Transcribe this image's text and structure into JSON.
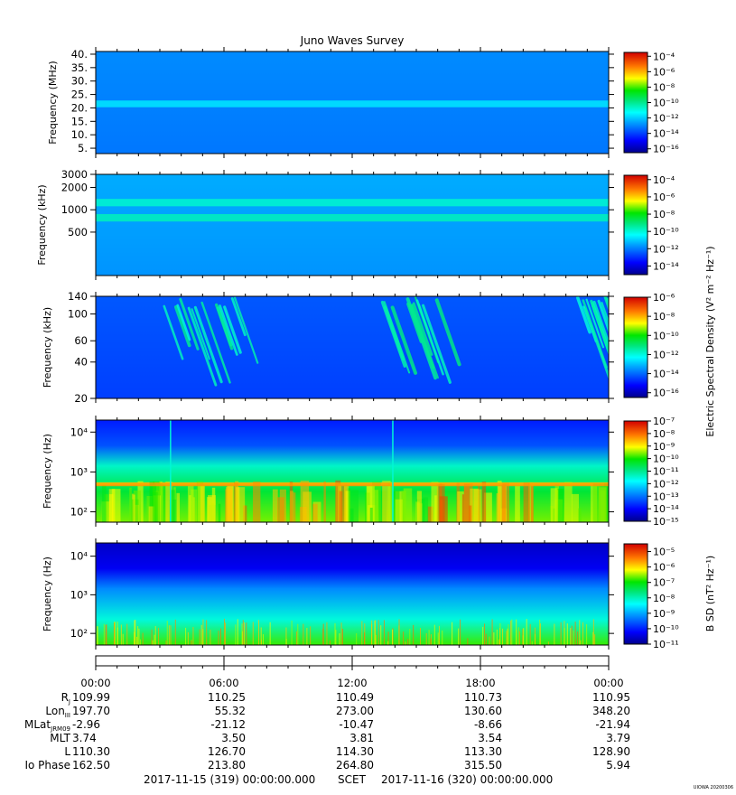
{
  "title": "Juno Waves Survey",
  "credit": "UIOWA 20200306",
  "chart_data": [
    {
      "type": "heatmap",
      "ylabel": "Frequency (MHz)",
      "yticks": [
        "40.",
        "35.",
        "30.",
        "25.",
        "20.",
        "15.",
        "10.",
        "5."
      ],
      "ytick_values": [
        40,
        35,
        30,
        25,
        20,
        15,
        10,
        5
      ],
      "ylim": [
        3,
        41
      ],
      "yscale": "linear",
      "colorbar_ticks": [
        -4,
        -6,
        -8,
        -10,
        -12,
        -14,
        -16
      ],
      "colorbar_range": [
        -16.5,
        -3.5
      ],
      "colorbar_label": "",
      "base_level": -12.9,
      "bands": [
        {
          "center": 21.5,
          "width": 2.5,
          "level": -11.6
        }
      ],
      "bursts": []
    },
    {
      "type": "heatmap",
      "ylabel": "Frequency (kHz)",
      "yticks": [
        "3000",
        "2000",
        "1000",
        "500"
      ],
      "ytick_values": [
        3000,
        2000,
        1000,
        500
      ],
      "ylim": [
        130,
        3000
      ],
      "yscale": "log",
      "colorbar_ticks": [
        -4,
        -6,
        -8,
        -10,
        -12,
        -14
      ],
      "colorbar_range": [
        -15,
        -3.5
      ],
      "colorbar_label": "",
      "base_level": -11.4,
      "bands": [
        {
          "center": 1250,
          "width": 0.05,
          "level": -9.9
        },
        {
          "center": 780,
          "width": 0.05,
          "level": -9.7
        }
      ],
      "bursts": []
    },
    {
      "type": "heatmap",
      "ylabel": "Frequency (kHz)",
      "yticks": [
        "140",
        "100",
        "60",
        "40",
        "20"
      ],
      "ytick_values": [
        140,
        100,
        60,
        40,
        20
      ],
      "ylim": [
        20,
        140
      ],
      "yscale": "log",
      "colorbar_ticks": [
        -6,
        -8,
        -10,
        -12,
        -14,
        -16
      ],
      "colorbar_range": [
        -16.5,
        -6
      ],
      "colorbar_label": "Electric Spectral Density (V² m⁻² Hz⁻¹)",
      "base_level": -14.2,
      "bands": [],
      "bursts": [
        {
          "t_start": 2.7,
          "t_end": 7.2,
          "level": -12.0
        },
        {
          "t_start": 12.5,
          "t_end": 16.8,
          "level": -11.8
        },
        {
          "t_start": 22.4,
          "t_end": 24.0,
          "level": -12.1
        }
      ]
    },
    {
      "type": "heatmap",
      "ylabel": "Frequency (Hz)",
      "yticks": [
        "10⁴",
        "10³",
        "10²"
      ],
      "ytick_values": [
        10000,
        1000,
        100
      ],
      "ylim": [
        55,
        20000
      ],
      "yscale": "log",
      "colorbar_ticks": [
        -7,
        -8,
        -9,
        -10,
        -11,
        -12,
        -13,
        -14,
        -15
      ],
      "colorbar_range": [
        -15,
        -7
      ],
      "colorbar_label": "",
      "base_level": -13.2,
      "bands": [
        {
          "center": 500,
          "width": 0.04,
          "level": -9.0
        }
      ],
      "bursts": [
        {
          "t_start": 6.0,
          "t_end": 11.5,
          "level": -8.5
        },
        {
          "t_start": 15.5,
          "t_end": 20.5,
          "level": -8.4
        }
      ]
    },
    {
      "type": "heatmap",
      "ylabel": "Frequency (Hz)",
      "yticks": [
        "10⁴",
        "10³",
        "10²"
      ],
      "ytick_values": [
        10000,
        1000,
        100
      ],
      "ylim": [
        50,
        22000
      ],
      "yscale": "log",
      "colorbar_ticks": [
        -5,
        -6,
        -7,
        -8,
        -9,
        -10,
        -11
      ],
      "colorbar_range": [
        -11,
        -4.5
      ],
      "colorbar_label": "B SD (nT² Hz⁻¹)",
      "base_level": -10.2,
      "bands": [],
      "bursts": []
    }
  ],
  "x_axis": {
    "tick_labels": [
      "00:00",
      "06:00",
      "12:00",
      "18:00",
      "00:00"
    ],
    "tick_hours": [
      0,
      6,
      12,
      18,
      24
    ],
    "xlim": [
      0,
      24
    ]
  },
  "ephemeris": [
    {
      "label": "R",
      "sub": "J",
      "values": [
        "109.99",
        "110.25",
        "110.49",
        "110.73",
        "110.95"
      ]
    },
    {
      "label": "Lon",
      "sub": "III",
      "values": [
        "197.70",
        "55.32",
        "273.00",
        "130.60",
        "348.20"
      ]
    },
    {
      "label": "MLat",
      "sub": "JRM09",
      "values": [
        "-2.96",
        "-21.12",
        "-10.47",
        "-8.66",
        "-21.94"
      ]
    },
    {
      "label": "MLT",
      "sub": "",
      "values": [
        "3.74",
        "3.50",
        "3.81",
        "3.54",
        "3.79"
      ]
    },
    {
      "label": "L",
      "sub": "",
      "values": [
        "110.30",
        "126.70",
        "114.30",
        "113.30",
        "128.90"
      ]
    },
    {
      "label": "Io Phase",
      "sub": "",
      "values": [
        "162.50",
        "213.80",
        "264.80",
        "315.50",
        "5.94"
      ]
    }
  ],
  "scet": {
    "start": "2017-11-15 (319) 00:00:00.000",
    "label": "SCET",
    "end": "2017-11-16 (320) 00:00:00.000"
  }
}
